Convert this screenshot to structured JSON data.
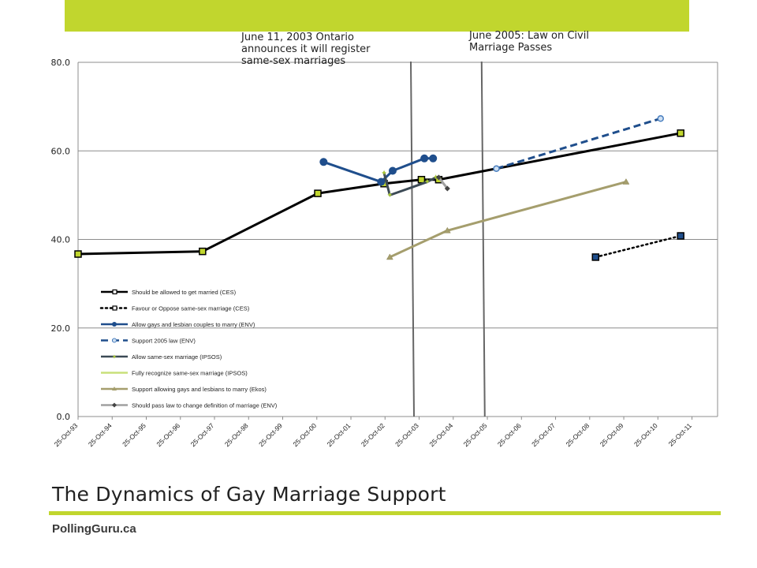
{
  "slide": {
    "title": "The Dynamics of Gay Marriage Support",
    "brand": "PollingGuru.ca",
    "accent_color": "#c1d62e"
  },
  "annotations": [
    {
      "text": "June 11, 2003 Ontario\nannounces it will register\nsame-sex marriages",
      "x_date": "2003-06-11"
    },
    {
      "text": "June 2005: Law on Civil\nMarriage Passes",
      "x_date": "2005-06-28"
    }
  ],
  "chart_data": {
    "type": "line",
    "title": "The Dynamics of Gay Marriage Support",
    "ylim": [
      0,
      80
    ],
    "yticks": [
      "0.0",
      "20.0",
      "40.0",
      "60.0",
      "80.0"
    ],
    "xticks": [
      "25-Oct-93",
      "25-Oct-94",
      "25-Oct-95",
      "25-Oct-96",
      "25-Oct-97",
      "25-Oct-98",
      "25-Oct-99",
      "25-Oct-00",
      "25-Oct-01",
      "25-Oct-02",
      "25-Oct-03",
      "25-Oct-04",
      "25-Oct-05",
      "25-Oct-06",
      "25-Oct-07",
      "25-Oct-08",
      "25-Oct-09",
      "25-Oct-10",
      "25-Oct-11"
    ],
    "grid": "horizontal",
    "legend_position": "left-bottom inside plot",
    "series": [
      {
        "name": "Should be allowed to get married (CES)",
        "color": "#000000",
        "style": "solid",
        "marker": "square-lime",
        "points": [
          [
            "1993-10-25",
            36.7
          ],
          [
            "1997-06-01",
            37.3
          ],
          [
            "2000-10-01",
            50.4
          ],
          [
            "2002-09-01",
            52.6
          ],
          [
            "2003-10-01",
            53.5
          ],
          [
            "2004-04-01",
            53.5
          ],
          [
            "2011-04-01",
            64.0
          ]
        ]
      },
      {
        "name": "Favour or Oppose same-sex marriage (CES)",
        "color": "#000000",
        "style": "dotted",
        "marker": "square-navy",
        "points": [
          [
            "2008-10-14",
            36.0
          ],
          [
            "2011-04-01",
            40.8
          ]
        ]
      },
      {
        "name": "Allow gays and lesbian couples to marry (ENV)",
        "color": "#1f4e8c",
        "style": "solid",
        "marker": "circle",
        "points": [
          [
            "2000-12-01",
            57.5
          ],
          [
            "2002-08-01",
            53.0
          ],
          [
            "2002-12-01",
            55.5
          ],
          [
            "2003-11-01",
            58.3
          ],
          [
            "2004-02-01",
            58.3
          ]
        ]
      },
      {
        "name": "Support 2005 law (ENV)",
        "color": "#1f4e8c",
        "style": "dashed",
        "marker": "circle-light",
        "points": [
          [
            "2005-12-01",
            56.0
          ],
          [
            "2010-09-01",
            67.3
          ]
        ]
      },
      {
        "name": "Allow same-sex marriage (IPSOS)",
        "color": "#3c4a55",
        "style": "solid",
        "marker": "star-green",
        "points": [
          [
            "2002-09-01",
            55.0
          ],
          [
            "2002-11-01",
            50.0
          ],
          [
            "2003-12-01",
            53.0
          ],
          [
            "2004-03-01",
            54.0
          ]
        ]
      },
      {
        "name": "Fully recognize same-sex marriage (IPSOS)",
        "color": "#c9e07a",
        "style": "solid",
        "marker": "none",
        "points": []
      },
      {
        "name": "Support allowing gays and lesbians to marry (Ekos)",
        "color": "#a59e6d",
        "style": "solid",
        "marker": "triangle",
        "points": [
          [
            "2002-11-01",
            36.0
          ],
          [
            "2004-07-01",
            42.0
          ],
          [
            "2009-09-01",
            53.0
          ]
        ]
      },
      {
        "name": "Should pass law to change definition of marriage (ENV)",
        "color": "#a0a0a0",
        "style": "solid",
        "marker": "diamond-dark",
        "points": [
          [
            "2004-04-01",
            54.0
          ],
          [
            "2004-07-01",
            51.5
          ]
        ]
      }
    ]
  }
}
